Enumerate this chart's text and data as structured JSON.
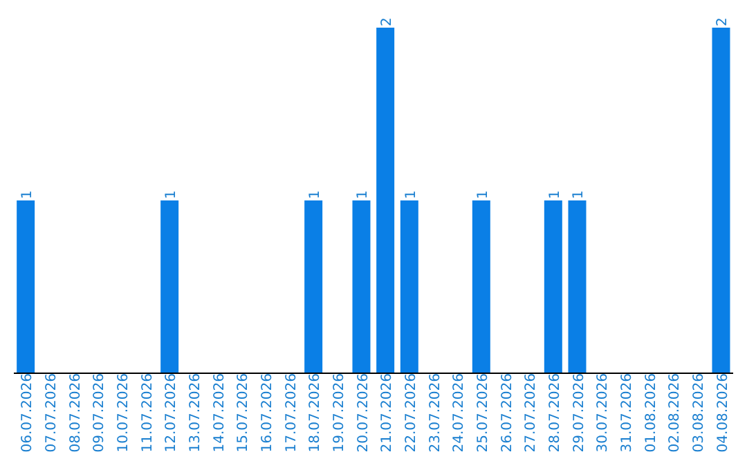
{
  "chart_data": {
    "type": "bar",
    "categories": [
      "06.07.2026",
      "07.07.2026",
      "08.07.2026",
      "09.07.2026",
      "10.07.2026",
      "11.07.2026",
      "12.07.2026",
      "13.07.2026",
      "14.07.2026",
      "15.07.2026",
      "16.07.2026",
      "17.07.2026",
      "18.07.2026",
      "19.07.2026",
      "20.07.2026",
      "21.07.2026",
      "22.07.2026",
      "23.07.2026",
      "24.07.2026",
      "25.07.2026",
      "26.07.2026",
      "27.07.2026",
      "28.07.2026",
      "29.07.2026",
      "30.07.2026",
      "31.07.2026",
      "01.08.2026",
      "02.08.2026",
      "03.08.2026",
      "04.08.2026"
    ],
    "values": [
      1,
      0,
      0,
      0,
      0,
      0,
      1,
      0,
      0,
      0,
      0,
      0,
      1,
      0,
      1,
      2,
      1,
      0,
      0,
      1,
      0,
      0,
      1,
      1,
      0,
      0,
      0,
      0,
      0,
      2
    ],
    "value_labels": [
      "1",
      null,
      null,
      null,
      null,
      null,
      "1",
      null,
      null,
      null,
      null,
      null,
      "1",
      null,
      "1",
      "2",
      "1",
      null,
      null,
      "1",
      null,
      null,
      "1",
      "1",
      null,
      null,
      null,
      null,
      null,
      "2"
    ],
    "color": "#0a7fe6",
    "tick_labels": "x",
    "grid": false,
    "legend": false
  }
}
